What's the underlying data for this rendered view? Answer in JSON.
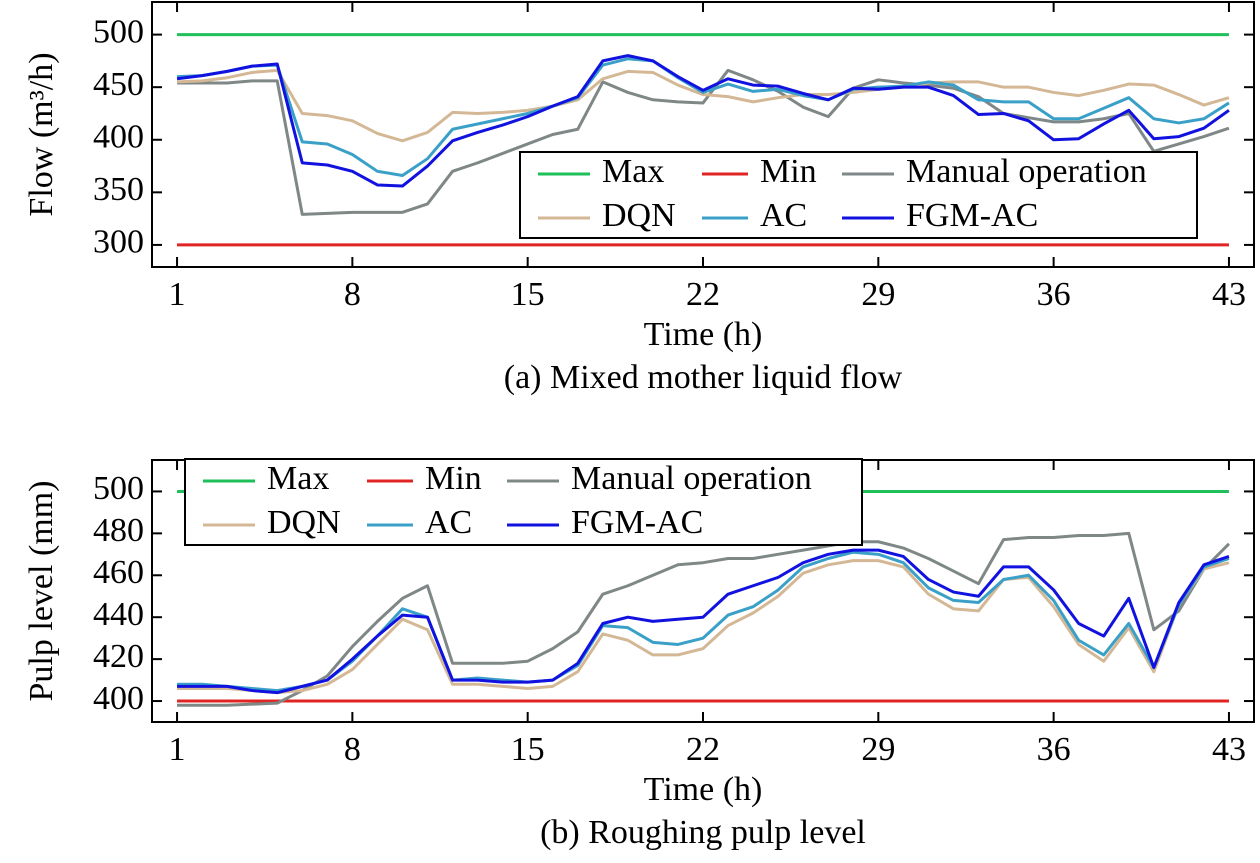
{
  "chart_data": [
    {
      "type": "line",
      "title": "(a) Mixed mother liquid flow",
      "x_label": "Time (h)",
      "y_label": "Flow (m³/h)",
      "x": [
        1,
        2,
        3,
        4,
        5,
        6,
        7,
        8,
        9,
        10,
        11,
        12,
        13,
        14,
        15,
        16,
        17,
        18,
        19,
        20,
        21,
        22,
        23,
        24,
        25,
        26,
        27,
        28,
        29,
        30,
        31,
        32,
        33,
        34,
        35,
        36,
        37,
        38,
        39,
        40,
        41,
        42,
        43
      ],
      "xlim": [
        0,
        44
      ],
      "xticks": [
        1,
        8,
        15,
        22,
        29,
        36,
        43
      ],
      "ylim": [
        279,
        531
      ],
      "yticks": [
        300,
        350,
        400,
        450,
        500
      ],
      "legend": "lower right",
      "series": [
        {
          "name": "Max",
          "color": "#1fbf5a",
          "values": [
            500,
            500,
            500,
            500,
            500,
            500,
            500,
            500,
            500,
            500,
            500,
            500,
            500,
            500,
            500,
            500,
            500,
            500,
            500,
            500,
            500,
            500,
            500,
            500,
            500,
            500,
            500,
            500,
            500,
            500,
            500,
            500,
            500,
            500,
            500,
            500,
            500,
            500,
            500,
            500,
            500,
            500,
            500
          ]
        },
        {
          "name": "Min",
          "color": "#e02424",
          "values": [
            300,
            300,
            300,
            300,
            300,
            300,
            300,
            300,
            300,
            300,
            300,
            300,
            300,
            300,
            300,
            300,
            300,
            300,
            300,
            300,
            300,
            300,
            300,
            300,
            300,
            300,
            300,
            300,
            300,
            300,
            300,
            300,
            300,
            300,
            300,
            300,
            300,
            300,
            300,
            300,
            300,
            300,
            300
          ]
        },
        {
          "name": "Manual operation",
          "color": "#7f8787",
          "values": [
            454,
            454,
            454,
            456,
            456,
            329,
            330,
            331,
            331,
            331,
            339,
            370,
            378,
            387,
            396,
            405,
            410,
            455,
            445,
            438,
            436,
            435,
            466,
            457,
            446,
            431,
            422,
            449,
            457,
            454,
            452,
            449,
            441,
            425,
            421,
            417,
            417,
            420,
            425,
            389,
            396,
            403,
            411
          ]
        },
        {
          "name": "DQN",
          "color": "#d4b896",
          "values": [
            455,
            456,
            459,
            464,
            466,
            425,
            423,
            418,
            406,
            399,
            407,
            426,
            425,
            426,
            428,
            432,
            438,
            458,
            465,
            464,
            452,
            443,
            441,
            436,
            440,
            443,
            443,
            445,
            448,
            450,
            454,
            455,
            455,
            450,
            450,
            445,
            442,
            447,
            453,
            452,
            443,
            433,
            440
          ]
        },
        {
          "name": "AC",
          "color": "#3aa0c8",
          "values": [
            460,
            461,
            465,
            470,
            471,
            398,
            396,
            386,
            370,
            366,
            382,
            410,
            415,
            420,
            425,
            432,
            440,
            471,
            477,
            475,
            459,
            445,
            453,
            446,
            448,
            442,
            438,
            448,
            450,
            451,
            455,
            452,
            438,
            436,
            436,
            420,
            420,
            430,
            440,
            420,
            416,
            420,
            435
          ]
        },
        {
          "name": "FGM-AC",
          "color": "#1212e0",
          "values": [
            458,
            461,
            465,
            470,
            472,
            378,
            376,
            370,
            357,
            356,
            375,
            399,
            407,
            414,
            422,
            432,
            441,
            475,
            480,
            475,
            460,
            447,
            458,
            452,
            451,
            444,
            438,
            449,
            448,
            450,
            450,
            442,
            424,
            425,
            418,
            400,
            401,
            415,
            428,
            401,
            403,
            411,
            428
          ]
        }
      ]
    },
    {
      "type": "line",
      "title": "(b) Roughing pulp level",
      "x_label": "Time (h)",
      "y_label": "Pulp level (mm)",
      "x": [
        1,
        2,
        3,
        4,
        5,
        6,
        7,
        8,
        9,
        10,
        11,
        12,
        13,
        14,
        15,
        16,
        17,
        18,
        19,
        20,
        21,
        22,
        23,
        24,
        25,
        26,
        27,
        28,
        29,
        30,
        31,
        32,
        33,
        34,
        35,
        36,
        37,
        38,
        39,
        40,
        41,
        42,
        43
      ],
      "xlim": [
        0,
        44
      ],
      "xticks": [
        1,
        8,
        15,
        22,
        29,
        36,
        43
      ],
      "ylim": [
        390,
        515
      ],
      "yticks": [
        400,
        420,
        440,
        460,
        480,
        500
      ],
      "legend": "upper left",
      "series": [
        {
          "name": "Max",
          "color": "#1fbf5a",
          "values": [
            500,
            500,
            500,
            500,
            500,
            500,
            500,
            500,
            500,
            500,
            500,
            500,
            500,
            500,
            500,
            500,
            500,
            500,
            500,
            500,
            500,
            500,
            500,
            500,
            500,
            500,
            500,
            500,
            500,
            500,
            500,
            500,
            500,
            500,
            500,
            500,
            500,
            500,
            500,
            500,
            500,
            500,
            500
          ]
        },
        {
          "name": "Min",
          "color": "#e02424",
          "values": [
            400,
            400,
            400,
            400,
            400,
            400,
            400,
            400,
            400,
            400,
            400,
            400,
            400,
            400,
            400,
            400,
            400,
            400,
            400,
            400,
            400,
            400,
            400,
            400,
            400,
            400,
            400,
            400,
            400,
            400,
            400,
            400,
            400,
            400,
            400,
            400,
            400,
            400,
            400,
            400,
            400,
            400,
            400
          ]
        },
        {
          "name": "Manual operation",
          "color": "#7f8787",
          "values": [
            398,
            398,
            398,
            398.5,
            399,
            405,
            412,
            426,
            438,
            449,
            455,
            418,
            418,
            418,
            419,
            425,
            433,
            451,
            455,
            460,
            465,
            466,
            468,
            468,
            470,
            472,
            474,
            476,
            476,
            473,
            468,
            462,
            456,
            477,
            478,
            478,
            479,
            479,
            480,
            434,
            443,
            463,
            475
          ]
        },
        {
          "name": "DQN",
          "color": "#d4b896",
          "values": [
            406,
            406,
            406,
            405,
            404,
            405,
            408,
            415,
            427,
            439,
            434,
            408,
            408,
            407,
            406,
            407,
            414,
            432,
            429,
            422,
            422,
            425,
            436,
            442,
            450,
            461,
            465,
            467,
            467,
            464,
            451,
            444,
            443,
            458,
            459,
            445,
            427,
            419,
            435,
            414,
            446,
            463,
            466
          ]
        },
        {
          "name": "AC",
          "color": "#3aa0c8",
          "values": [
            408,
            408,
            407,
            406,
            405,
            407,
            410,
            419,
            431,
            444,
            440,
            410,
            411,
            410,
            409,
            410,
            417,
            436,
            435,
            428,
            427,
            430,
            441,
            445,
            453,
            464,
            468,
            471,
            470,
            466,
            454,
            448,
            447,
            458,
            460,
            448,
            429,
            422,
            437,
            416,
            446,
            464,
            468
          ]
        },
        {
          "name": "FGM-AC",
          "color": "#1212e0",
          "values": [
            407,
            407,
            407,
            405,
            404,
            407,
            410,
            420,
            431,
            441,
            440,
            410,
            410,
            409,
            409,
            410,
            418,
            437,
            440,
            438,
            439,
            440,
            451,
            455,
            459,
            466,
            470,
            472,
            472,
            469,
            458,
            452,
            450,
            464,
            464,
            453,
            437,
            431,
            449,
            416,
            447,
            465,
            469
          ]
        }
      ]
    }
  ]
}
